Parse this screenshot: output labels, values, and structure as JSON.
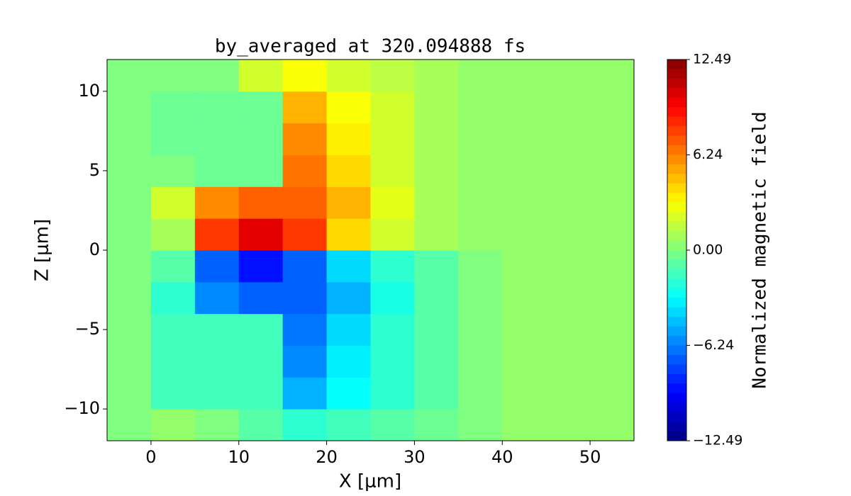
{
  "chart_data": {
    "type": "heatmap",
    "title": "by_averaged at 320.094888 fs",
    "x_label": "X [μm]",
    "y_label": "Z [μm]",
    "colorbar_label": "Normalized magnetic field",
    "colormap": "jet",
    "xedges": [
      -5,
      0,
      5,
      10,
      15,
      20,
      25,
      30,
      35,
      40,
      45,
      50,
      55
    ],
    "yedges": [
      -12,
      -10,
      -8,
      -6,
      -4,
      -2,
      0,
      2,
      4,
      6,
      8,
      10,
      12
    ],
    "z": [
      [
        0,
        0.5,
        0,
        -1,
        -2,
        -1.5,
        -1,
        -0.5,
        0,
        0.5,
        0.5,
        0.5
      ],
      [
        0,
        -1.5,
        -1.5,
        -1.5,
        -5,
        -3,
        -2,
        -1,
        0,
        0.5,
        0.5,
        0.5
      ],
      [
        0,
        -1.5,
        -1.5,
        -1.5,
        -6,
        -3.5,
        -2,
        -1,
        0,
        0.5,
        0.5,
        0.5
      ],
      [
        0,
        -1.5,
        -1.5,
        -1.5,
        -6.5,
        -4,
        -2,
        -1,
        0,
        0.5,
        0.5,
        0.5
      ],
      [
        0,
        -2,
        -6,
        -7,
        -7,
        -5,
        -2.5,
        -1,
        0,
        0.5,
        0.5,
        0.5
      ],
      [
        0,
        -1,
        -7,
        -9,
        -7,
        -4,
        -2,
        -1,
        0,
        0.5,
        0.5,
        0.5
      ],
      [
        0,
        1,
        8,
        10,
        8,
        4,
        2,
        1,
        0.5,
        0.5,
        0.5,
        0.5
      ],
      [
        0,
        2,
        6,
        7,
        7,
        5,
        2.5,
        1,
        0.5,
        0.5,
        0.5,
        0.5
      ],
      [
        0,
        0,
        -0.5,
        -0.5,
        6.5,
        4,
        2,
        1,
        0.5,
        0.5,
        0.5,
        0.5
      ],
      [
        0,
        -0.5,
        -0.5,
        -0.5,
        6,
        3.5,
        2,
        1,
        0.5,
        0.5,
        0.5,
        0.5
      ],
      [
        0,
        -0.5,
        -0.5,
        -0.5,
        5,
        3,
        2,
        1,
        0.5,
        0.5,
        0.5,
        0.5
      ],
      [
        0,
        0,
        0,
        2,
        3,
        2,
        1.5,
        1,
        0.5,
        0.5,
        0.5,
        0.5
      ]
    ],
    "xlim": [
      -5,
      55
    ],
    "xticks": [
      0,
      10,
      20,
      30,
      40,
      50
    ],
    "ylim": [
      -12,
      12
    ],
    "yticks": [
      {
        "value": -10,
        "label": "−10"
      },
      {
        "value": -5,
        "label": "−5"
      },
      0,
      5,
      10
    ],
    "clim": [
      -12.49,
      12.49
    ],
    "cticks": [
      {
        "value": -12.49,
        "label": "−12.49"
      },
      {
        "value": -6.24,
        "label": "−6.24"
      },
      {
        "value": 0,
        "label": "0.00"
      },
      6.24,
      12.49
    ]
  }
}
